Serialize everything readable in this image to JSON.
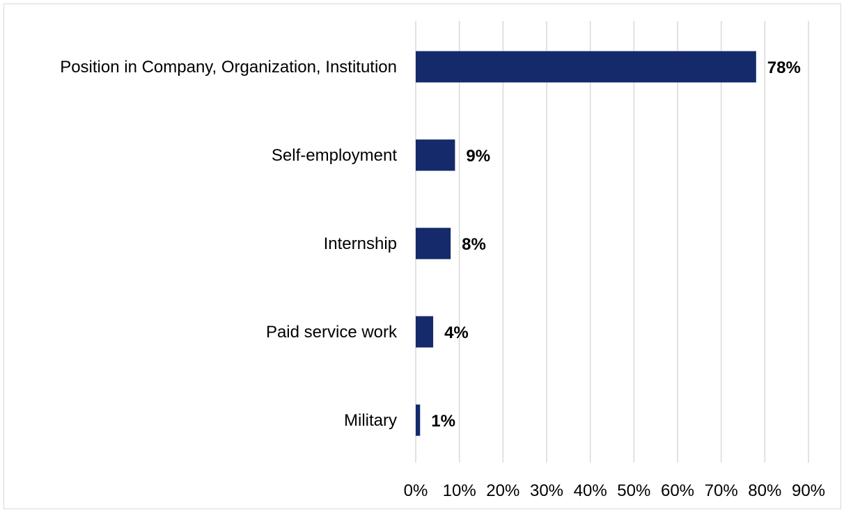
{
  "chart_data": {
    "type": "bar",
    "orientation": "horizontal",
    "categories": [
      "Position in Company, Organization, Institution",
      "Self-employment",
      "Internship",
      "Paid service work",
      "Military"
    ],
    "values": [
      78,
      9,
      8,
      4,
      1
    ],
    "data_labels": [
      "78%",
      "9%",
      "8%",
      "4%",
      "1%"
    ],
    "xlim": [
      0,
      90
    ],
    "x_ticks": [
      0,
      10,
      20,
      30,
      40,
      50,
      60,
      70,
      80,
      90
    ],
    "x_tick_labels": [
      "0%",
      "10%",
      "20%",
      "30%",
      "40%",
      "50%",
      "60%",
      "70%",
      "80%",
      "90%"
    ],
    "title": "",
    "xlabel": "",
    "ylabel": "",
    "grid": true,
    "grid_axis": "x",
    "legend": "none",
    "colors": {
      "bar": "#142a6b",
      "grid": "#d9d9d9",
      "frame": "#d9d9d9"
    }
  }
}
